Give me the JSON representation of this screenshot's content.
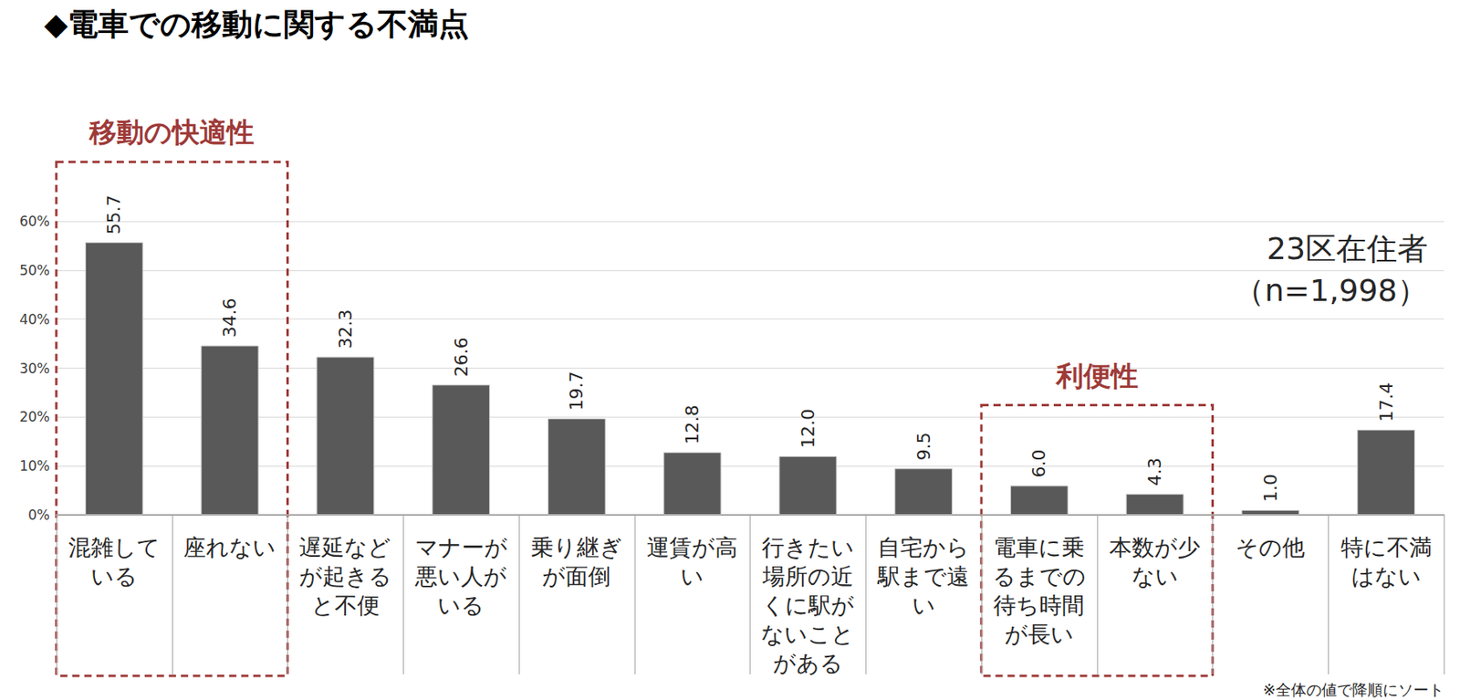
{
  "chart_data": {
    "type": "bar",
    "title": "◆電車での移動に関する不満点",
    "categories": [
      "混雑している",
      "座れない",
      "遅延などが起きると不便",
      "マナーが悪い人がいる",
      "乗り継ぎが面倒",
      "運賃が高い",
      "行きたい場所の近くに駅がないことがある",
      "自宅から駅まで遠い",
      "電車に乗るまでの待ち時間が長い",
      "本数が少ない",
      "その他",
      "特に不満はない"
    ],
    "values": [
      55.7,
      34.6,
      32.3,
      26.6,
      19.7,
      12.8,
      12.0,
      9.5,
      6.0,
      4.3,
      1.0,
      17.4
    ],
    "value_labels": [
      "55.7",
      "34.6",
      "32.3",
      "26.6",
      "19.7",
      "12.8",
      "12.0",
      "9.5",
      "6.0",
      "4.3",
      "1.0",
      "17.4"
    ],
    "color": "#595959",
    "ylim": [
      0,
      60
    ],
    "yticks": [
      {
        "value": 0,
        "label": "0%"
      },
      {
        "value": 10,
        "label": "10%"
      },
      {
        "value": 20,
        "label": "20%"
      },
      {
        "value": 30,
        "label": "30%"
      },
      {
        "value": 40,
        "label": "40%"
      },
      {
        "value": 50,
        "label": "50%"
      },
      {
        "value": 60,
        "label": "60%"
      }
    ],
    "grid": true,
    "data_labels": true,
    "annotations": [
      {
        "text": "移動の快適性",
        "from": "混雑している",
        "to": "座れない"
      },
      {
        "text": "利便性",
        "from": "電車に乗るまでの待ち時間が長い",
        "to": "本数が少ない"
      },
      {
        "text": "23区在住者"
      },
      {
        "text": "（n=1,998）"
      },
      {
        "text": "※全体の値で降順にソート"
      }
    ]
  }
}
